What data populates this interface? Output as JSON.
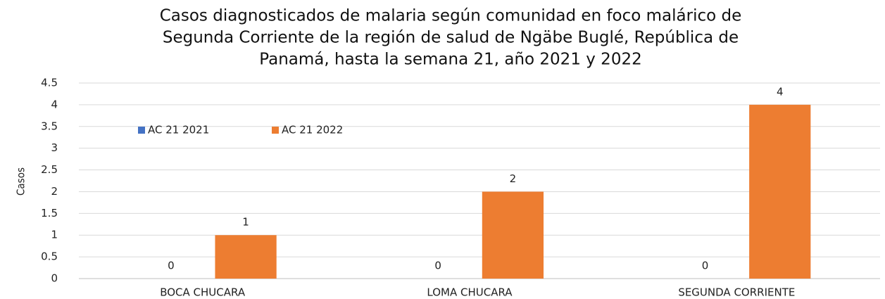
{
  "chart_data": {
    "type": "bar",
    "title": [
      "Casos diagnosticados de malaria según comunidad en foco malárico de",
      "Segunda Corriente de la región de salud de Ngäbe Buglé, República de",
      "Panamá, hasta la semana 21, año 2021 y 2022"
    ],
    "y_label": "Casos",
    "categories": [
      "BOCA CHUCARA",
      "LOMA CHUCARA",
      "SEGUNDA CORRIENTE"
    ],
    "series": [
      {
        "name": "AC 21 2021",
        "color": "#4472c4",
        "values": [
          0,
          0,
          0
        ]
      },
      {
        "name": "AC 21 2022",
        "color": "#ed7d31",
        "values": [
          1,
          2,
          4
        ]
      }
    ],
    "ylim": [
      0,
      4.5
    ],
    "yticks": [
      0,
      0.5,
      1,
      1.5,
      2,
      2.5,
      3,
      3.5,
      4,
      4.5
    ],
    "grid": true,
    "legend": "upper left"
  }
}
